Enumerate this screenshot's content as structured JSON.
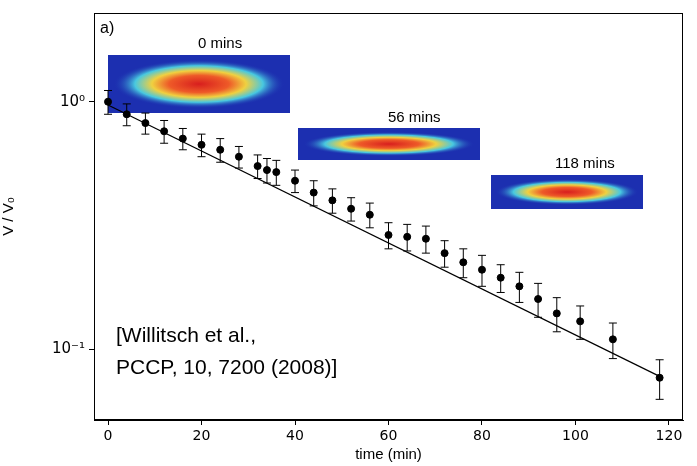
{
  "chart_data": {
    "type": "scatter",
    "panel_label": "a)",
    "x_label": "time (min)",
    "y_label": "V / V₀",
    "log": "y",
    "grid": false,
    "color": "#000000",
    "marker": "circle",
    "x": [
      0,
      4,
      8,
      12,
      16,
      20,
      24,
      28,
      32,
      34,
      36,
      40,
      44,
      48,
      52,
      56,
      60,
      64,
      68,
      72,
      76,
      80,
      84,
      88,
      92,
      96,
      101,
      108,
      118
    ],
    "values": [
      1.0,
      0.89,
      0.82,
      0.76,
      0.71,
      0.67,
      0.64,
      0.6,
      0.55,
      0.53,
      0.52,
      0.48,
      0.43,
      0.4,
      0.37,
      0.35,
      0.29,
      0.285,
      0.28,
      0.245,
      0.225,
      0.21,
      0.195,
      0.18,
      0.16,
      0.14,
      0.13,
      0.11,
      0.077
    ],
    "errors": [
      0.11,
      0.09,
      0.08,
      0.08,
      0.07,
      0.07,
      0.07,
      0.06,
      0.06,
      0.06,
      0.06,
      0.05,
      0.05,
      0.045,
      0.04,
      0.04,
      0.035,
      0.035,
      0.035,
      0.03,
      0.03,
      0.03,
      0.025,
      0.025,
      0.025,
      0.022,
      0.02,
      0.018,
      0.014
    ],
    "fit": {
      "type": "line",
      "line_style": "solid",
      "color": "#000000",
      "x": [
        0,
        118
      ],
      "values": [
        0.97,
        0.078
      ]
    },
    "xlim": [
      -3,
      123
    ],
    "xticks": [
      0,
      20,
      40,
      60,
      80,
      100,
      120
    ],
    "ylim": [
      0.052,
      2.28
    ],
    "yticks": [
      {
        "value": 0.1,
        "label": "10⁻¹"
      },
      {
        "value": 1,
        "label": "10⁰"
      }
    ],
    "image_labels": [
      "0 mins",
      "56 mins",
      "118 mins"
    ],
    "citation": [
      "[Willitsch et al.,",
      "PCCP, 10, 7200 (2008)]"
    ]
  }
}
